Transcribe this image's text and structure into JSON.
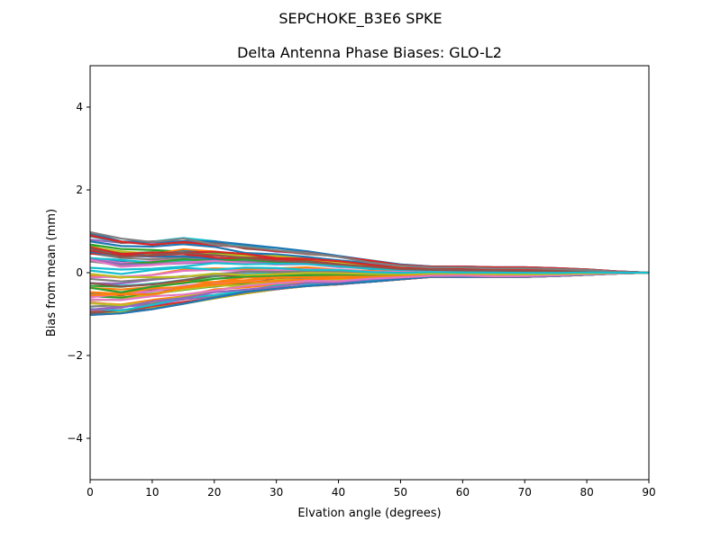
{
  "chart_data": {
    "type": "line",
    "suptitle": "SEPCHOKE_B3E6   SPKE",
    "title": "Delta Antenna Phase Biases: GLO-L2",
    "xlabel": "Elvation angle (degrees)",
    "ylabel": "Bias from mean (mm)",
    "xlim": [
      0,
      90
    ],
    "ylim": [
      -5,
      5
    ],
    "xticks": [
      0,
      10,
      20,
      30,
      40,
      50,
      60,
      70,
      80,
      90
    ],
    "yticks": [
      -4,
      -2,
      0,
      2,
      4
    ],
    "ytick_labels": [
      "−4",
      "−2",
      "0",
      "2",
      "4"
    ],
    "grid": false,
    "legend": null,
    "x": [
      0,
      5,
      10,
      15,
      20,
      25,
      30,
      35,
      40,
      45,
      50,
      55,
      60,
      65,
      70,
      75,
      80,
      85,
      90
    ],
    "colors": [
      "#1f77b4",
      "#ff7f0e",
      "#2ca02c",
      "#d62728",
      "#9467bd",
      "#8c564b",
      "#e377c2",
      "#7f7f7f",
      "#bcbd22",
      "#17becf"
    ],
    "series_count": 60,
    "envelope": {
      "upper": [
        1.05,
        0.88,
        0.86,
        0.86,
        0.78,
        0.68,
        0.6,
        0.52,
        0.42,
        0.3,
        0.2,
        0.15,
        0.15,
        0.13,
        0.13,
        0.11,
        0.08,
        0.03,
        0.0
      ],
      "lower": [
        -1.02,
        -0.98,
        -0.88,
        -0.75,
        -0.62,
        -0.5,
        -0.4,
        -0.32,
        -0.28,
        -0.22,
        -0.16,
        -0.1,
        -0.1,
        -0.1,
        -0.1,
        -0.08,
        -0.05,
        -0.02,
        0.0
      ]
    }
  }
}
